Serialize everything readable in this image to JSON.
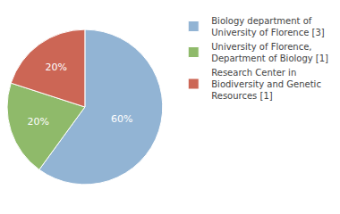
{
  "chart_data": {
    "type": "pie",
    "categories": [
      "Biology department of\nUniversity of Florence [3]",
      "University of Florence,\nDepartment of Biology [1]",
      "Research Center in\nBiodiversity and Genetic\nResources [1]"
    ],
    "values": [
      60,
      20,
      20
    ],
    "value_labels": [
      "60%",
      "20%",
      "20%"
    ],
    "colors": [
      "#92b4d4",
      "#8fba6a",
      "#cc6655"
    ],
    "data_labels": true,
    "legend": "right"
  }
}
